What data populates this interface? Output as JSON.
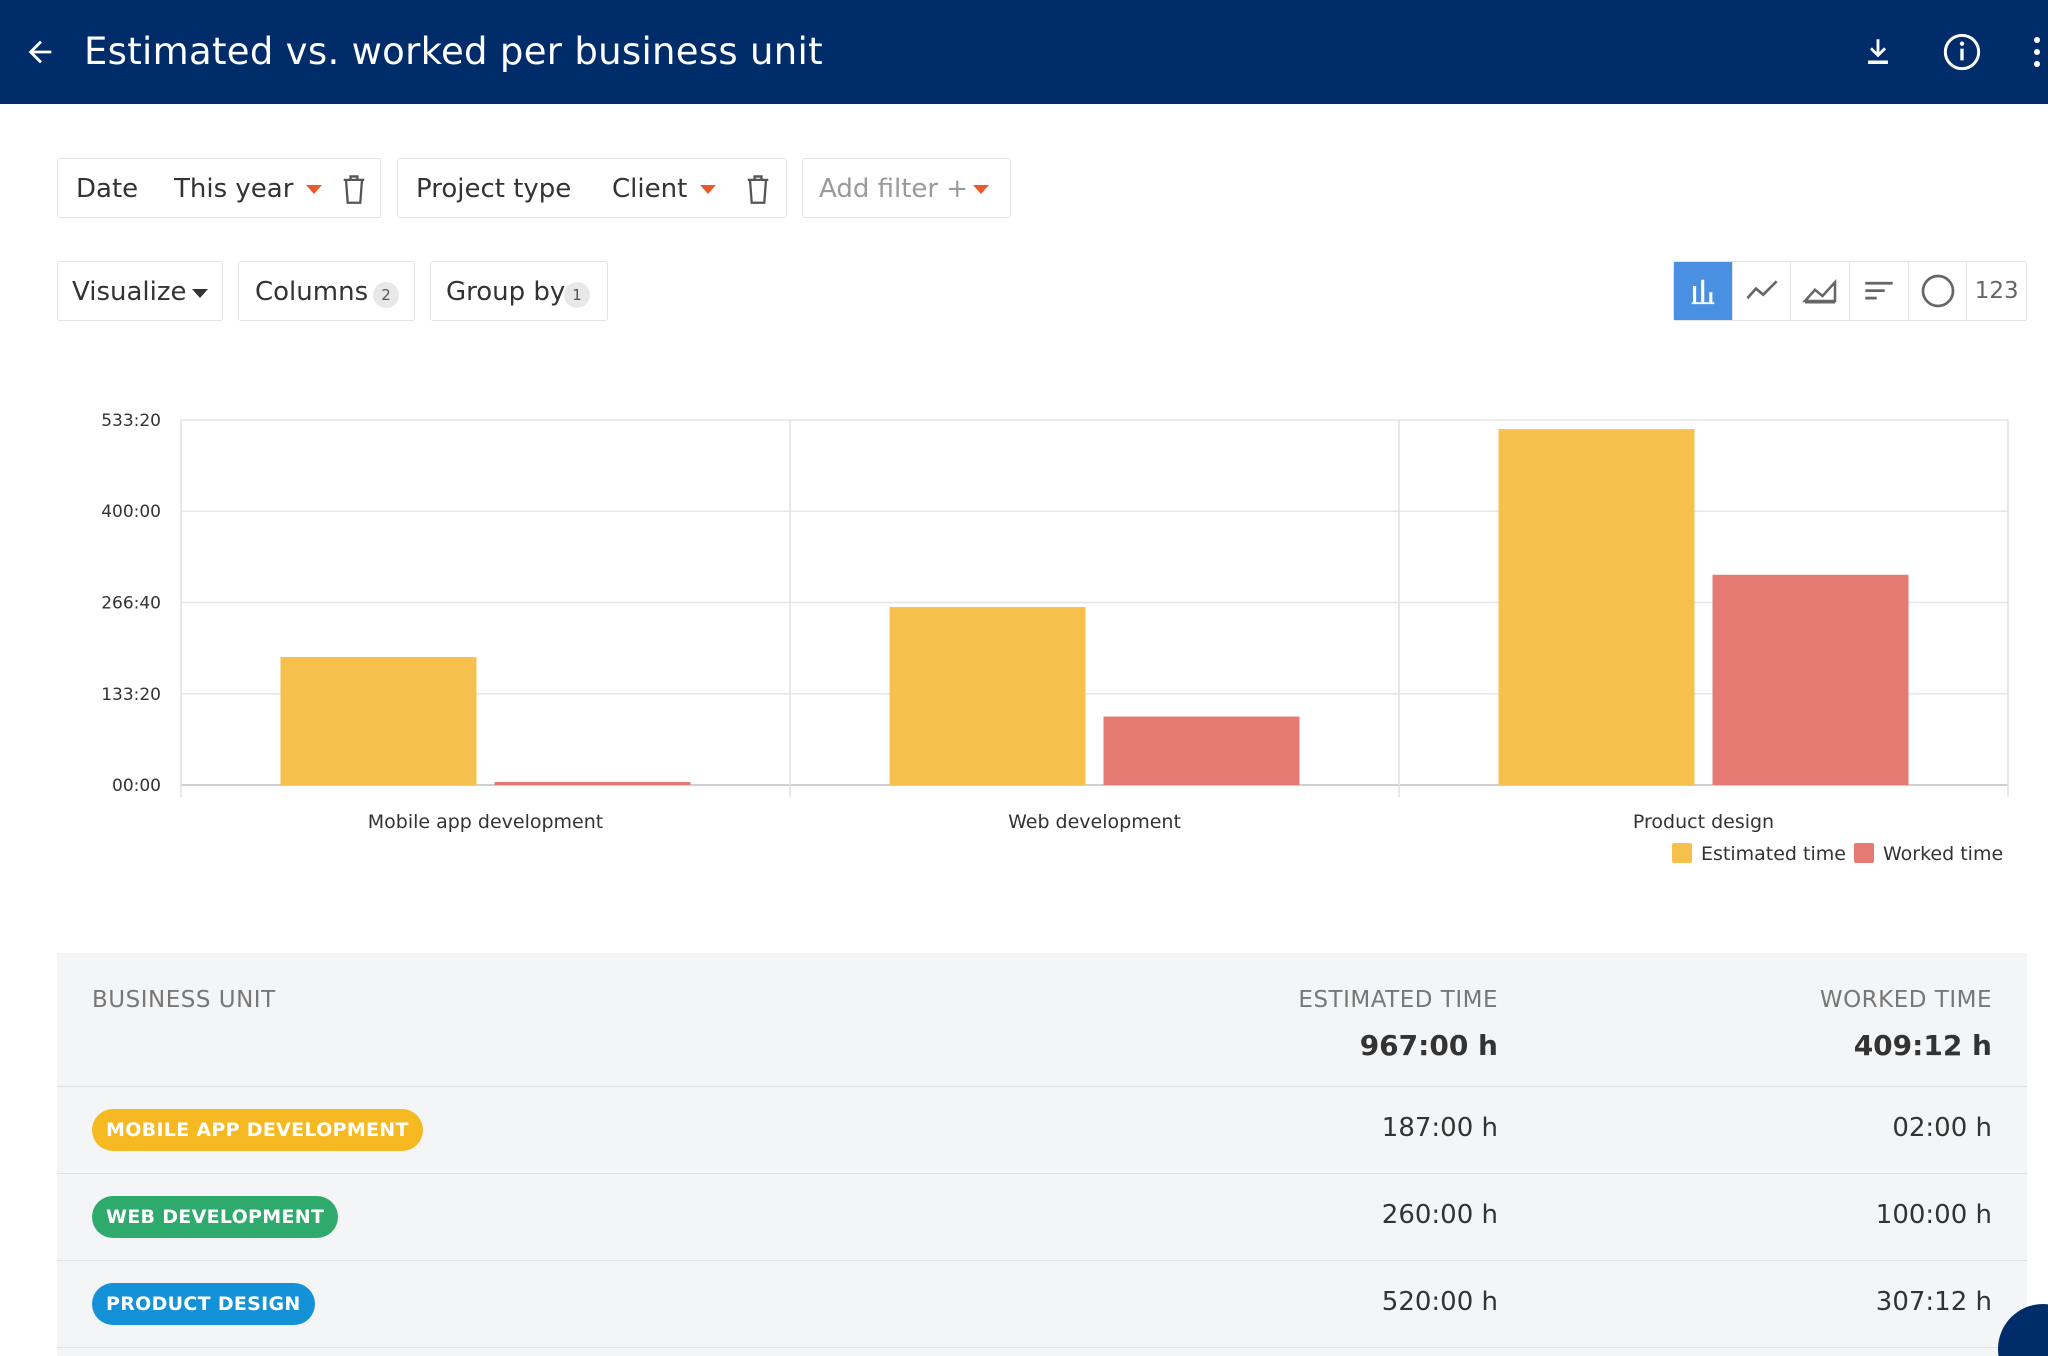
{
  "header": {
    "title": "Estimated vs. worked per business unit",
    "back_icon": "arrow-left-icon",
    "download_icon": "download-icon",
    "info_icon": "info-icon",
    "more_icon": "more-vertical-icon"
  },
  "filters": [
    {
      "name": "Date",
      "value": "This year"
    },
    {
      "name": "Project type",
      "value": "Client"
    }
  ],
  "add_filter": {
    "label": "Add filter +"
  },
  "toolbar": {
    "visualize": "Visualize",
    "columns": {
      "label": "Columns",
      "count": "2"
    },
    "group_by": {
      "label": "Group by",
      "count": "1"
    }
  },
  "chart_types": {
    "active": "bar",
    "items": [
      "bar",
      "line",
      "area",
      "horizontal-bar",
      "pie",
      "number"
    ],
    "number_label": "123"
  },
  "chart_data": {
    "type": "bar",
    "categories": [
      "Mobile app development",
      "Web development",
      "Product design"
    ],
    "series": [
      {
        "name": "Estimated time",
        "color": "#f6c04d",
        "values": [
          187,
          260,
          520
        ]
      },
      {
        "name": "Worked time",
        "color": "#e57a72",
        "values": [
          2,
          100,
          307.2
        ]
      }
    ],
    "yticks": [
      {
        "value": 0,
        "label": "00:00"
      },
      {
        "value": 133.333,
        "label": "133:20"
      },
      {
        "value": 266.667,
        "label": "266:40"
      },
      {
        "value": 400,
        "label": "400:00"
      },
      {
        "value": 533.333,
        "label": "533:20"
      }
    ],
    "ylim": [
      0,
      533.333
    ],
    "grid": true,
    "legend": "bottom-right"
  },
  "table": {
    "columns": {
      "business_unit": "BUSINESS UNIT",
      "estimated": "ESTIMATED TIME",
      "worked": "WORKED TIME"
    },
    "totals": {
      "estimated": "967:00 h",
      "worked": "409:12 h"
    },
    "rows": [
      {
        "unit": "MOBILE APP DEVELOPMENT",
        "color": "#f6b922",
        "estimated": "187:00 h",
        "worked": "02:00 h"
      },
      {
        "unit": "WEB DEVELOPMENT",
        "color": "#2faa6d",
        "estimated": "260:00 h",
        "worked": "100:00 h"
      },
      {
        "unit": "PRODUCT DESIGN",
        "color": "#1492d8",
        "estimated": "520:00 h",
        "worked": "307:12 h"
      }
    ]
  }
}
